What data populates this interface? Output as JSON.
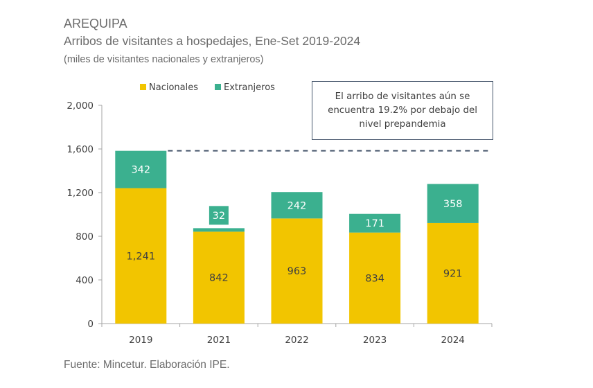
{
  "header": {
    "region": "AREQUIPA",
    "title": "Arribos de visitantes a hospedajes,  Ene-Set 2019-2024",
    "units": "(miles de visitantes nacionales y extranjeros)"
  },
  "annotation": {
    "text": "El arribo de visitantes aún se encuentra 19.2% por debajo del nivel prepandemia"
  },
  "footer": {
    "source": "Fuente: Mincetur. Elaboración IPE."
  },
  "colors": {
    "nacionales": "#f2c500",
    "extranjeros": "#3bb08f",
    "axis": "#a6a6a6",
    "text": "#404040",
    "reference_line": "#44546a"
  },
  "chart_data": {
    "type": "bar",
    "stacked": true,
    "title": "Arribos de visitantes a hospedajes, Ene-Set 2019-2024",
    "subtitle": "(miles de visitantes nacionales y extranjeros)",
    "xlabel": "",
    "ylabel": "",
    "categories": [
      "2019",
      "2021",
      "2022",
      "2023",
      "2024"
    ],
    "series": [
      {
        "name": "Nacionales",
        "values": [
          1241,
          842,
          963,
          834,
          921
        ],
        "labels": [
          "1,241",
          "842",
          "963",
          "834",
          "921"
        ]
      },
      {
        "name": "Extranjeros",
        "values": [
          342,
          32,
          242,
          171,
          358
        ],
        "labels": [
          "342",
          "32",
          "242",
          "171",
          "358"
        ]
      }
    ],
    "ylim": [
      0,
      2000
    ],
    "yticks": [
      0,
      400,
      800,
      1200,
      1600,
      2000
    ],
    "ytick_labels": [
      "0",
      "400",
      "800",
      "1,200",
      "1,600",
      "2,000"
    ],
    "reference_line": {
      "value": 1583,
      "style": "dashed",
      "description": "nivel prepandemia (2019 total)"
    },
    "grid": false,
    "legend": "top-left"
  }
}
